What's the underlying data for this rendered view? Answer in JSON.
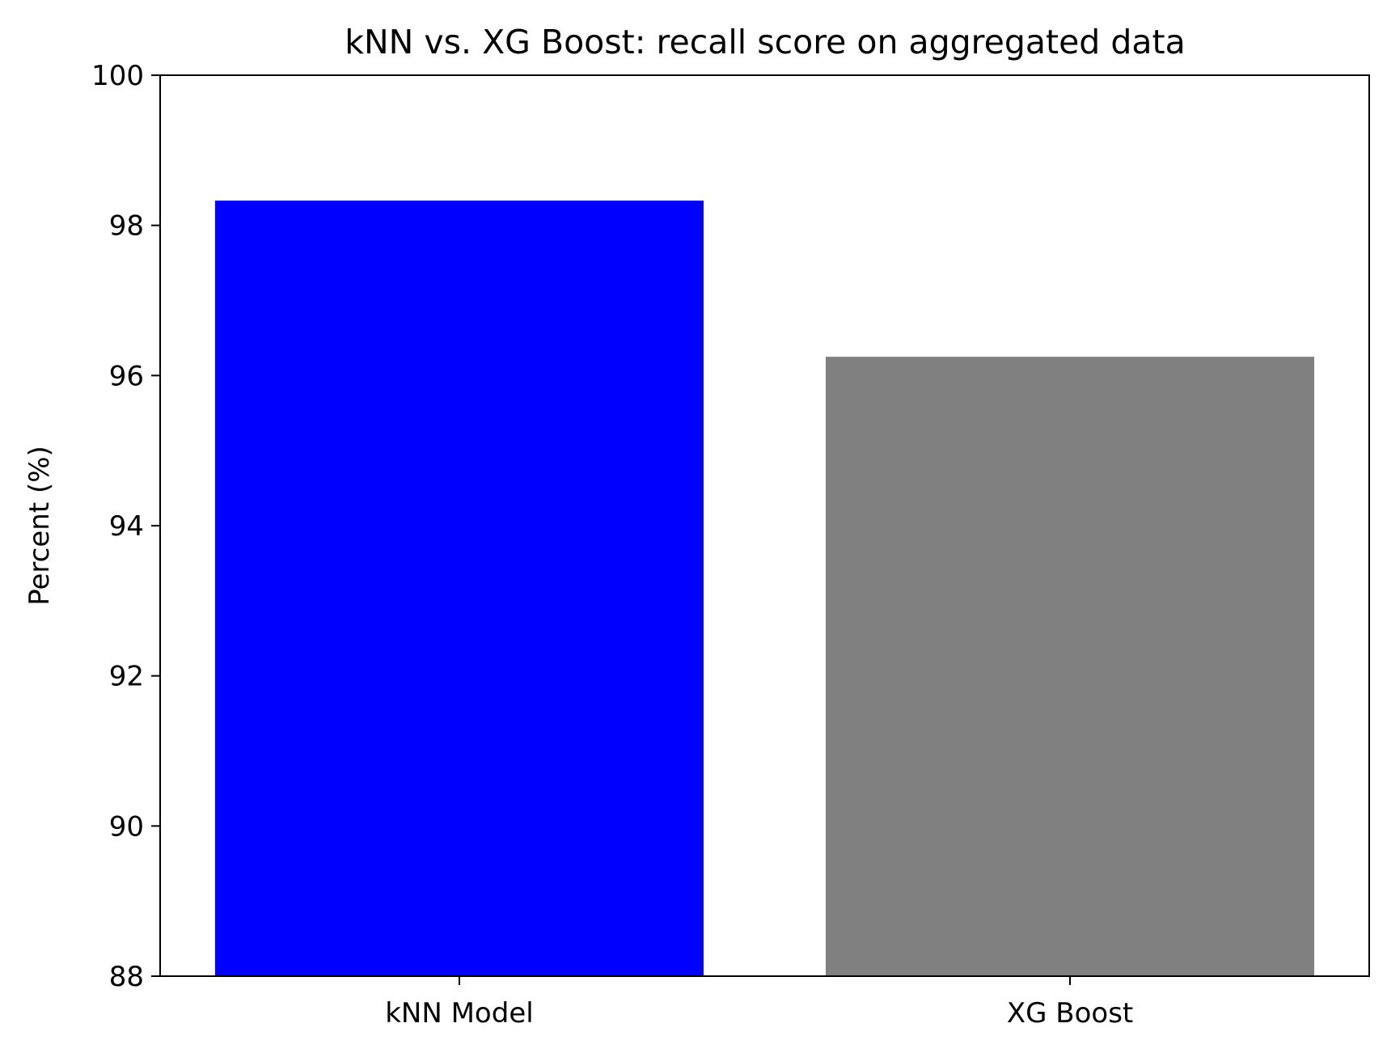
{
  "chart_data": {
    "type": "bar",
    "title": "kNN vs. XG Boost: recall score on aggregated data",
    "xlabel": "",
    "ylabel": "Percent (%)",
    "categories": [
      "kNN Model",
      "XG Boost"
    ],
    "values": [
      98.33,
      96.25
    ],
    "colors": [
      "#0000ff",
      "#808080"
    ],
    "ylim": [
      88,
      100
    ],
    "yticks": [
      "88",
      "90",
      "92",
      "94",
      "96",
      "98",
      "100"
    ],
    "grid": false,
    "legend": "none"
  }
}
